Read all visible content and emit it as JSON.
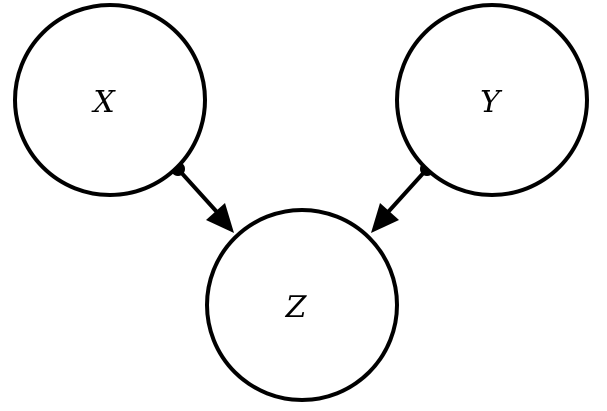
{
  "diagram": {
    "nodes": [
      {
        "id": "x",
        "label": "X"
      },
      {
        "id": "y",
        "label": "Y"
      },
      {
        "id": "z",
        "label": "Z"
      }
    ],
    "edges": [
      {
        "from": "x",
        "to": "z"
      },
      {
        "from": "y",
        "to": "z"
      }
    ],
    "colors": {
      "stroke": "#000000",
      "fill": "#ffffff"
    }
  }
}
